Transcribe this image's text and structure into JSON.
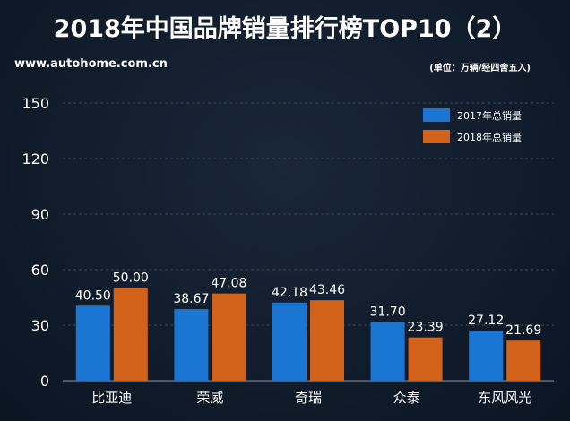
{
  "header": {
    "title": "2018年中国品牌销量排行榜TOP10（2）",
    "source": "www.autohome.com.cn",
    "unit": "(单位：万辆/经四舍五入)"
  },
  "colors": {
    "background": "#0f1a29",
    "series_2017": "#1a76d2",
    "series_2018": "#d2621a",
    "grid": "#3a4656",
    "text": "#ffffff"
  },
  "chart_data": {
    "type": "bar",
    "title": "2018年中国品牌销量排行榜TOP10（2）",
    "xlabel": "",
    "ylabel": "",
    "ylim": [
      0,
      150
    ],
    "yticks": [
      0,
      30,
      60,
      90,
      120,
      150
    ],
    "grid": true,
    "legend_position": "top-right",
    "categories": [
      "比亚迪",
      "荣威",
      "奇瑞",
      "众泰",
      "东风风光"
    ],
    "series": [
      {
        "name": "2017年总销量",
        "values": [
          40.5,
          38.67,
          42.18,
          31.7,
          27.12
        ],
        "labels": [
          "40.50",
          "38.67",
          "42.18",
          "31.70",
          "27.12"
        ]
      },
      {
        "name": "2018年总销量",
        "values": [
          50.0,
          47.08,
          43.46,
          23.39,
          21.69
        ],
        "labels": [
          "50.00",
          "47.08",
          "43.46",
          "23.39",
          "21.69"
        ]
      }
    ]
  }
}
